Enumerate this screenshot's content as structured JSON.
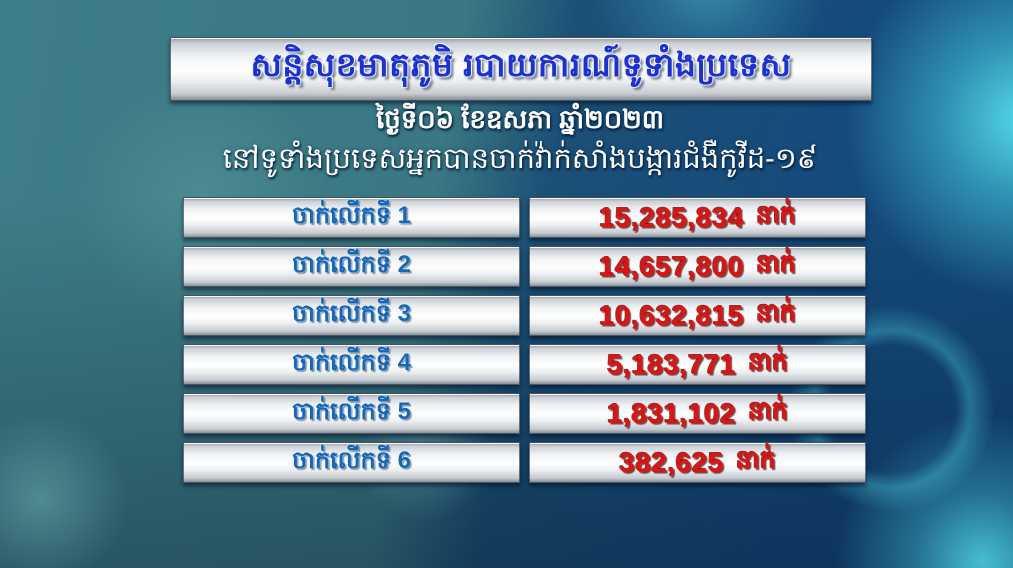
{
  "header": {
    "title": "សន្តិសុខមាតុភូមិ របាយការណ៍ទូទាំងប្រទេស",
    "date_line": "ថ្ងៃទី០៦ ខែឧសភា ឆ្នាំ២០២៣",
    "subtitle": "នៅទូទាំងប្រទេសអ្នកបានចាក់វ៉ាក់សាំងបង្ការជំងឺកូវីដ-១៩"
  },
  "table": {
    "rows": [
      {
        "label": "ចាក់លើកទី 1",
        "value": "15,285,834",
        "unit": "នាក់"
      },
      {
        "label": "ចាក់លើកទី 2",
        "value": "14,657,800",
        "unit": "នាក់"
      },
      {
        "label": "ចាក់លើកទី 3",
        "value": "10,632,815",
        "unit": "នាក់"
      },
      {
        "label": "ចាក់លើកទី 4",
        "value": "5,183,771",
        "unit": "នាក់"
      },
      {
        "label": "ចាក់លើកទី 5",
        "value": "1,831,102",
        "unit": "នាក់"
      },
      {
        "label": "ចាក់លើកទី 6",
        "value": "382,625",
        "unit": "នាក់"
      }
    ]
  },
  "colors": {
    "title_blue": "#1e31cf",
    "label_blue": "#1767b8",
    "value_red": "#e01212",
    "bg_teal_left": "#3e7e88",
    "bg_blue_right": "#154a7c",
    "virus_cyan": "#56e0ee",
    "panel_silver": "#eef1f3"
  },
  "chart_data": {
    "type": "table",
    "title": "សន្តិសុខមាតុភូមិ របាយការណ៍ទូទាំងប្រទេស",
    "date": "ថ្ងៃទី០៦ ខែឧសភា ឆ្នាំ២០២៣",
    "subtitle": "នៅទូទាំងប្រទេសអ្នកបានចាក់វ៉ាក់សាំងបង្ការជំងឺកូវីដ-១៩",
    "categories": [
      "ចាក់លើកទី 1",
      "ចាក់លើកទី 2",
      "ចាក់លើកទី 3",
      "ចាក់លើកទី 4",
      "ចាក់លើកទី 5",
      "ចាក់លើកទី 6"
    ],
    "values": [
      15285834,
      14657800,
      10632815,
      5183771,
      1831102,
      382625
    ],
    "unit": "នាក់"
  }
}
